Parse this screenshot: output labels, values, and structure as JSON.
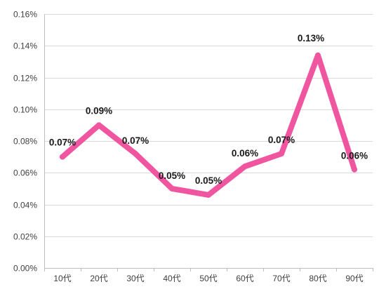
{
  "chart_data": {
    "type": "line",
    "categories": [
      "10代",
      "20代",
      "30代",
      "40代",
      "50代",
      "60代",
      "70代",
      "80代",
      "90代"
    ],
    "series": [
      {
        "values": [
          0.0007,
          0.0009,
          0.00072,
          0.0005,
          0.00046,
          0.00064,
          0.00072,
          0.00134,
          0.00062
        ],
        "data_labels": [
          "0.07%",
          "0.09%",
          "0.07%",
          "0.05%",
          "0.05%",
          "0.06%",
          "0.07%",
          "0.13%",
          "0.06%"
        ],
        "color": "#f0569f"
      }
    ],
    "ylim": [
      0,
      0.0016
    ],
    "yticks": [
      0,
      0.0002,
      0.0004,
      0.0006,
      0.0008,
      0.001,
      0.0012,
      0.0014,
      0.0016
    ],
    "ytick_labels": [
      "0.00%",
      "0.02%",
      "0.04%",
      "0.06%",
      "0.08%",
      "0.10%",
      "0.12%",
      "0.14%",
      "0.16%"
    ],
    "grid": true,
    "legend": "none",
    "title": "",
    "xlabel": "",
    "ylabel": ""
  }
}
